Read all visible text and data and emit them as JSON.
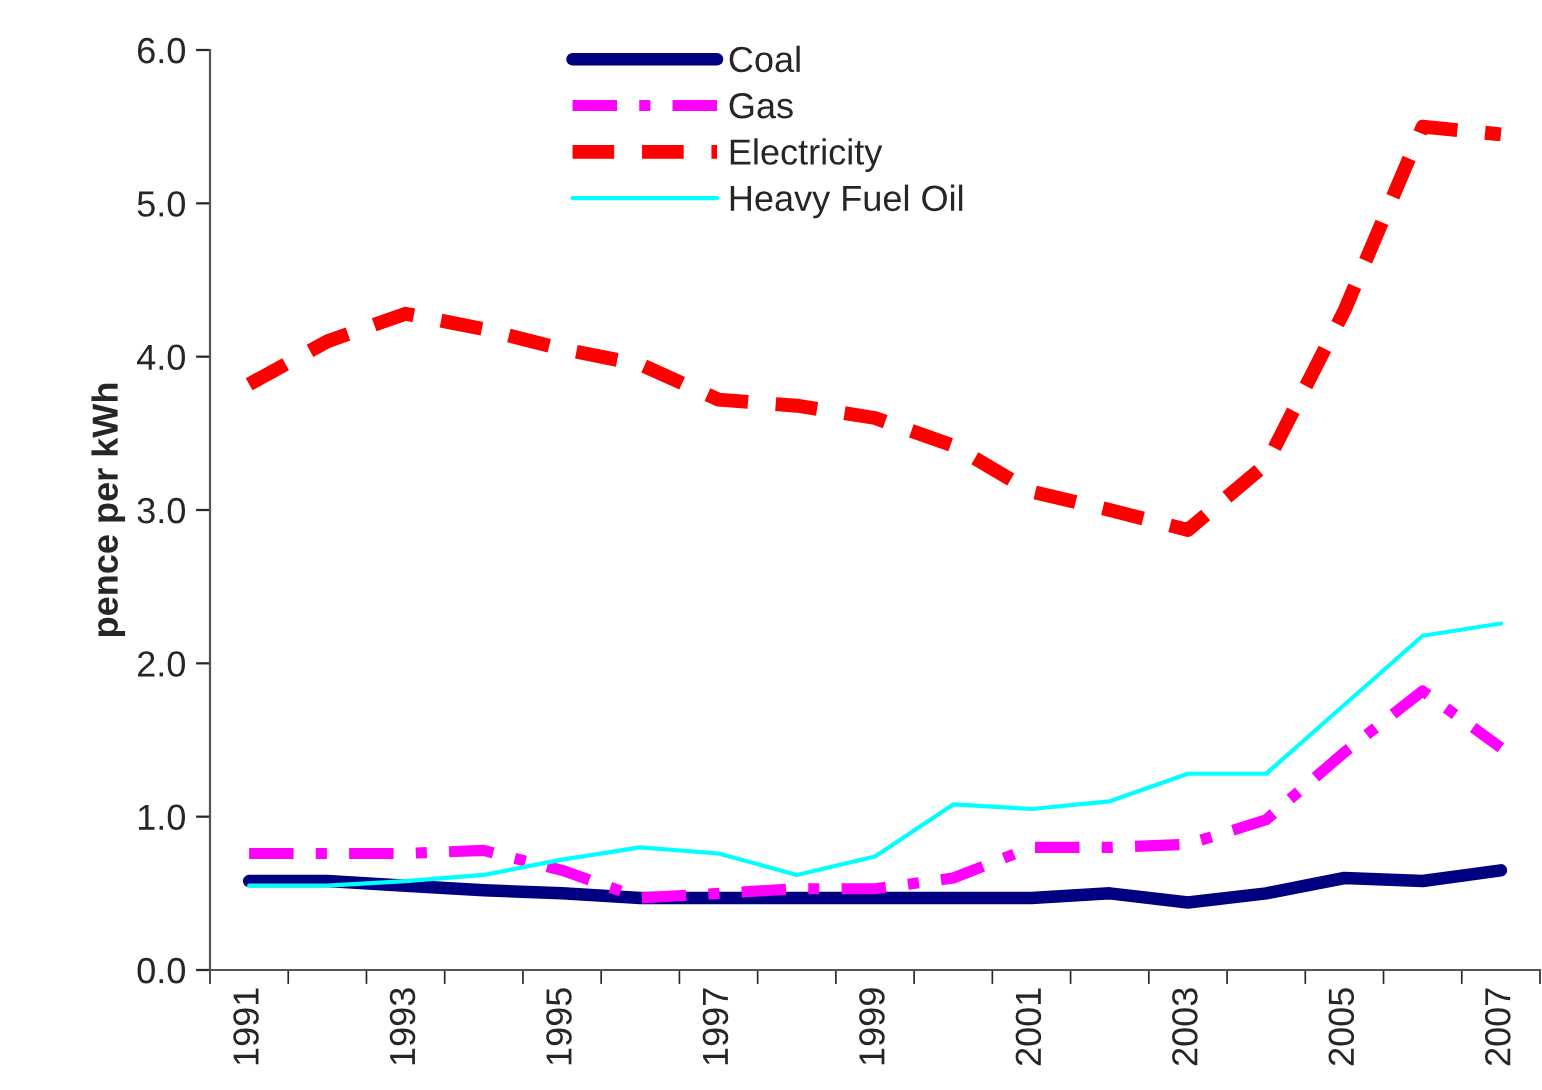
{
  "chart_data": {
    "type": "line",
    "ylabel": "pence per kWh",
    "categories": [
      "1991",
      null,
      "1993",
      null,
      "1995",
      null,
      "1997",
      null,
      "1999",
      null,
      "2001",
      null,
      "2003",
      null,
      "2005",
      null,
      "2007"
    ],
    "series": [
      {
        "name": "Coal",
        "color": "#000080",
        "line_style": "solid",
        "values": [
          0.58,
          0.58,
          0.55,
          0.52,
          0.5,
          0.47,
          0.47,
          0.47,
          0.47,
          0.47,
          0.47,
          0.5,
          0.44,
          0.5,
          0.6,
          0.58,
          0.65
        ]
      },
      {
        "name": "Gas",
        "color": "#ff00ff",
        "line_style": "dashdot",
        "values": [
          0.76,
          0.76,
          0.76,
          0.78,
          0.65,
          0.47,
          0.5,
          0.53,
          0.53,
          0.6,
          0.8,
          0.8,
          0.82,
          0.98,
          1.42,
          1.82,
          1.45
        ]
      },
      {
        "name": "Electricity",
        "color": "#ff0000",
        "line_style": "dashed",
        "values": [
          3.82,
          4.1,
          4.28,
          4.18,
          4.05,
          3.95,
          3.72,
          3.68,
          3.6,
          3.42,
          3.12,
          3.0,
          2.87,
          3.3,
          4.3,
          5.5,
          5.45
        ]
      },
      {
        "name": "Heavy Fuel Oil",
        "color": "#00ffff",
        "line_style": "solid",
        "values": [
          0.55,
          0.55,
          0.58,
          0.62,
          0.72,
          0.8,
          0.76,
          0.62,
          0.74,
          1.08,
          1.05,
          1.1,
          1.28,
          1.28,
          1.73,
          2.18,
          2.26
        ]
      }
    ],
    "ylim": [
      0,
      6
    ],
    "yticks": [
      {
        "value": 0,
        "label": "0.0"
      },
      {
        "value": 1,
        "label": "1.0"
      },
      {
        "value": 2,
        "label": "2.0"
      },
      {
        "value": 3,
        "label": "3.0"
      },
      {
        "value": 4,
        "label": "4.0"
      },
      {
        "value": 5,
        "label": "5.0"
      },
      {
        "value": 6,
        "label": "6.0"
      }
    ],
    "grid": false,
    "legend": "top",
    "marker": "none"
  }
}
